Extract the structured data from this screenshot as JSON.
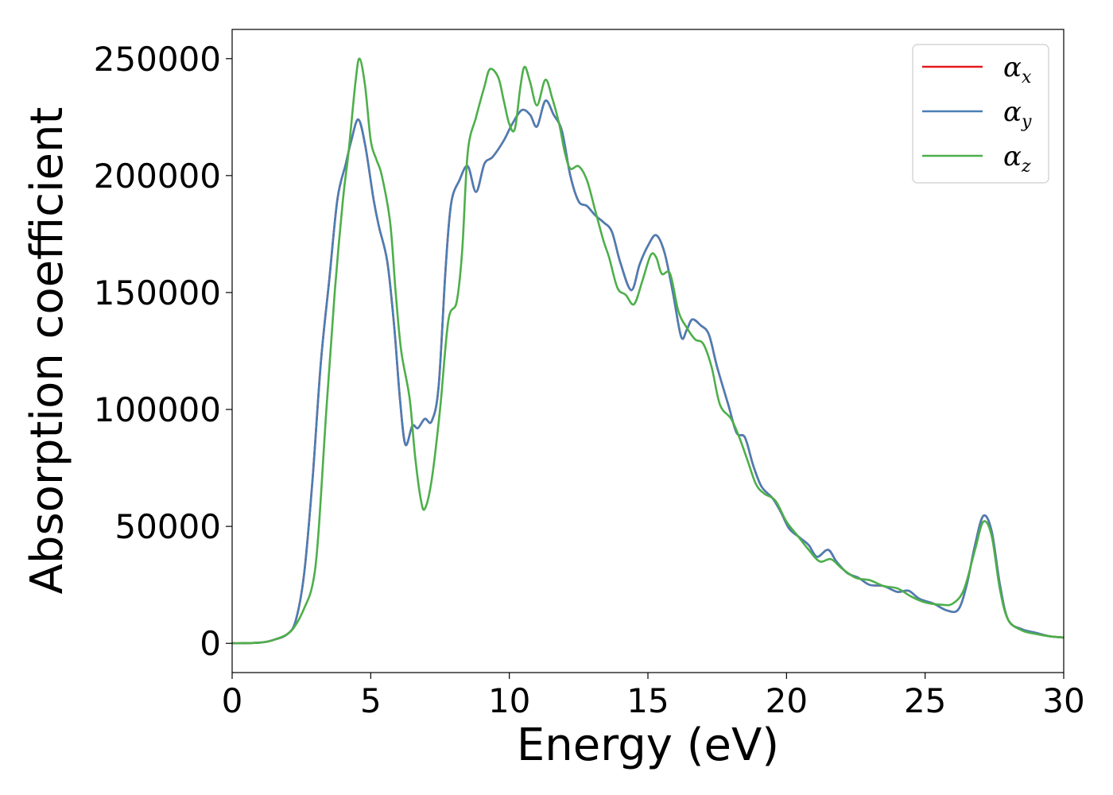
{
  "chart_data": {
    "type": "line",
    "xlabel": "Energy (eV)",
    "ylabel": "Absorption coefficient",
    "xlim": [
      0,
      30
    ],
    "ylim": [
      -12500,
      262500
    ],
    "xticks": [
      "0",
      "5",
      "10",
      "15",
      "20",
      "25",
      "30"
    ],
    "xtick_values": [
      0,
      5,
      10,
      15,
      20,
      25,
      30
    ],
    "yticks": [
      "0",
      "50000",
      "100000",
      "150000",
      "200000",
      "250000"
    ],
    "ytick_values": [
      0,
      50000,
      100000,
      150000,
      200000,
      250000
    ],
    "grid": false,
    "legend_position": "top-right",
    "series": [
      {
        "name": "α_x",
        "label_main": "α",
        "label_sub": "x",
        "color": "#e41a1c",
        "points": [
          [
            0,
            0
          ],
          [
            1.0,
            300
          ],
          [
            1.5,
            1500
          ],
          [
            2.0,
            4000
          ],
          [
            2.3,
            10000
          ],
          [
            2.6,
            30000
          ],
          [
            2.9,
            70000
          ],
          [
            3.2,
            120000
          ],
          [
            3.5,
            155000
          ],
          [
            3.8,
            190000
          ],
          [
            4.1,
            205000
          ],
          [
            4.3,
            215000
          ],
          [
            4.55,
            224000
          ],
          [
            4.8,
            213000
          ],
          [
            5.1,
            190000
          ],
          [
            5.3,
            178000
          ],
          [
            5.6,
            163000
          ],
          [
            5.85,
            135000
          ],
          [
            6.05,
            105000
          ],
          [
            6.25,
            85000
          ],
          [
            6.5,
            93000
          ],
          [
            6.7,
            92000
          ],
          [
            6.95,
            96000
          ],
          [
            7.2,
            95000
          ],
          [
            7.45,
            110000
          ],
          [
            7.7,
            160000
          ],
          [
            7.9,
            188000
          ],
          [
            8.2,
            198000
          ],
          [
            8.5,
            204000
          ],
          [
            8.8,
            193000
          ],
          [
            9.1,
            205000
          ],
          [
            9.4,
            208000
          ],
          [
            9.8,
            215000
          ],
          [
            10.1,
            222000
          ],
          [
            10.45,
            228000
          ],
          [
            10.75,
            226000
          ],
          [
            11.0,
            221000
          ],
          [
            11.3,
            232000
          ],
          [
            11.6,
            226000
          ],
          [
            11.9,
            219000
          ],
          [
            12.2,
            200000
          ],
          [
            12.5,
            189000
          ],
          [
            12.8,
            187000
          ],
          [
            13.1,
            183000
          ],
          [
            13.4,
            180000
          ],
          [
            13.7,
            176000
          ],
          [
            14.0,
            163000
          ],
          [
            14.4,
            151000
          ],
          [
            14.7,
            162000
          ],
          [
            15.0,
            170000
          ],
          [
            15.3,
            174500
          ],
          [
            15.6,
            167000
          ],
          [
            15.9,
            150000
          ],
          [
            16.2,
            131000
          ],
          [
            16.4,
            134000
          ],
          [
            16.6,
            138500
          ],
          [
            16.9,
            136000
          ],
          [
            17.2,
            132000
          ],
          [
            17.5,
            118000
          ],
          [
            17.9,
            102000
          ],
          [
            18.2,
            90000
          ],
          [
            18.5,
            88000
          ],
          [
            18.8,
            76000
          ],
          [
            19.1,
            67000
          ],
          [
            19.5,
            62000
          ],
          [
            19.8,
            56000
          ],
          [
            20.1,
            49000
          ],
          [
            20.5,
            45000
          ],
          [
            20.8,
            42000
          ],
          [
            21.1,
            37000
          ],
          [
            21.5,
            40000
          ],
          [
            21.8,
            35000
          ],
          [
            22.2,
            30000
          ],
          [
            22.6,
            28000
          ],
          [
            23.0,
            25000
          ],
          [
            23.5,
            24500
          ],
          [
            24.0,
            22000
          ],
          [
            24.4,
            22500
          ],
          [
            24.8,
            19000
          ],
          [
            25.3,
            17000
          ],
          [
            25.8,
            14000
          ],
          [
            26.2,
            14500
          ],
          [
            26.5,
            25000
          ],
          [
            26.8,
            42000
          ],
          [
            27.1,
            54500
          ],
          [
            27.4,
            48000
          ],
          [
            27.7,
            25000
          ],
          [
            28.0,
            10000
          ],
          [
            28.5,
            6000
          ],
          [
            29.0,
            4500
          ],
          [
            29.5,
            3000
          ],
          [
            30.0,
            2500
          ]
        ]
      },
      {
        "name": "α_y",
        "label_main": "α",
        "label_sub": "y",
        "color": "#4a7eb5",
        "points": [
          [
            0,
            0
          ],
          [
            1.0,
            300
          ],
          [
            1.5,
            1500
          ],
          [
            2.0,
            4000
          ],
          [
            2.3,
            10000
          ],
          [
            2.6,
            30000
          ],
          [
            2.9,
            70000
          ],
          [
            3.2,
            120000
          ],
          [
            3.5,
            155000
          ],
          [
            3.8,
            190000
          ],
          [
            4.1,
            205000
          ],
          [
            4.3,
            215000
          ],
          [
            4.55,
            224000
          ],
          [
            4.8,
            213000
          ],
          [
            5.1,
            190000
          ],
          [
            5.3,
            178000
          ],
          [
            5.6,
            163000
          ],
          [
            5.85,
            135000
          ],
          [
            6.05,
            105000
          ],
          [
            6.25,
            85000
          ],
          [
            6.5,
            93000
          ],
          [
            6.7,
            92000
          ],
          [
            6.95,
            96000
          ],
          [
            7.2,
            95000
          ],
          [
            7.45,
            110000
          ],
          [
            7.7,
            160000
          ],
          [
            7.9,
            188000
          ],
          [
            8.2,
            198000
          ],
          [
            8.5,
            204000
          ],
          [
            8.8,
            193000
          ],
          [
            9.1,
            205000
          ],
          [
            9.4,
            208000
          ],
          [
            9.8,
            215000
          ],
          [
            10.1,
            222000
          ],
          [
            10.45,
            228000
          ],
          [
            10.75,
            226000
          ],
          [
            11.0,
            221000
          ],
          [
            11.3,
            232000
          ],
          [
            11.6,
            226000
          ],
          [
            11.9,
            219000
          ],
          [
            12.2,
            200000
          ],
          [
            12.5,
            189000
          ],
          [
            12.8,
            187000
          ],
          [
            13.1,
            183000
          ],
          [
            13.4,
            180000
          ],
          [
            13.7,
            176000
          ],
          [
            14.0,
            163000
          ],
          [
            14.4,
            151000
          ],
          [
            14.7,
            162000
          ],
          [
            15.0,
            170000
          ],
          [
            15.3,
            174500
          ],
          [
            15.6,
            167000
          ],
          [
            15.9,
            150000
          ],
          [
            16.2,
            131000
          ],
          [
            16.4,
            134000
          ],
          [
            16.6,
            138500
          ],
          [
            16.9,
            136000
          ],
          [
            17.2,
            132000
          ],
          [
            17.5,
            118000
          ],
          [
            17.9,
            102000
          ],
          [
            18.2,
            90000
          ],
          [
            18.5,
            88000
          ],
          [
            18.8,
            76000
          ],
          [
            19.1,
            67000
          ],
          [
            19.5,
            62000
          ],
          [
            19.8,
            56000
          ],
          [
            20.1,
            49000
          ],
          [
            20.5,
            45000
          ],
          [
            20.8,
            42000
          ],
          [
            21.1,
            37000
          ],
          [
            21.5,
            40000
          ],
          [
            21.8,
            35000
          ],
          [
            22.2,
            30000
          ],
          [
            22.6,
            28000
          ],
          [
            23.0,
            25000
          ],
          [
            23.5,
            24500
          ],
          [
            24.0,
            22000
          ],
          [
            24.4,
            22500
          ],
          [
            24.8,
            19000
          ],
          [
            25.3,
            17000
          ],
          [
            25.8,
            14000
          ],
          [
            26.2,
            14500
          ],
          [
            26.5,
            25000
          ],
          [
            26.8,
            42000
          ],
          [
            27.1,
            54500
          ],
          [
            27.4,
            48000
          ],
          [
            27.7,
            25000
          ],
          [
            28.0,
            10000
          ],
          [
            28.5,
            6000
          ],
          [
            29.0,
            4500
          ],
          [
            29.5,
            3000
          ],
          [
            30.0,
            2500
          ]
        ]
      },
      {
        "name": "α_z",
        "label_main": "α",
        "label_sub": "z",
        "color": "#4daf4a",
        "points": [
          [
            0,
            0
          ],
          [
            1.0,
            300
          ],
          [
            1.5,
            1500
          ],
          [
            2.0,
            4000
          ],
          [
            2.3,
            8000
          ],
          [
            2.6,
            15000
          ],
          [
            2.9,
            25000
          ],
          [
            3.1,
            45000
          ],
          [
            3.4,
            100000
          ],
          [
            3.7,
            150000
          ],
          [
            4.0,
            190000
          ],
          [
            4.2,
            210000
          ],
          [
            4.45,
            240000
          ],
          [
            4.6,
            250000
          ],
          [
            4.8,
            238000
          ],
          [
            5.0,
            215000
          ],
          [
            5.2,
            207000
          ],
          [
            5.4,
            200000
          ],
          [
            5.7,
            180000
          ],
          [
            5.9,
            150000
          ],
          [
            6.1,
            125000
          ],
          [
            6.4,
            105000
          ],
          [
            6.6,
            80000
          ],
          [
            6.8,
            62000
          ],
          [
            6.95,
            57500
          ],
          [
            7.2,
            70000
          ],
          [
            7.5,
            100000
          ],
          [
            7.8,
            138000
          ],
          [
            8.1,
            146000
          ],
          [
            8.3,
            168000
          ],
          [
            8.5,
            210000
          ],
          [
            8.8,
            225000
          ],
          [
            9.1,
            238000
          ],
          [
            9.3,
            245500
          ],
          [
            9.6,
            242000
          ],
          [
            9.8,
            232000
          ],
          [
            10.0,
            222000
          ],
          [
            10.2,
            220000
          ],
          [
            10.4,
            238000
          ],
          [
            10.55,
            246500
          ],
          [
            10.75,
            240000
          ],
          [
            11.0,
            230000
          ],
          [
            11.3,
            241000
          ],
          [
            11.55,
            233000
          ],
          [
            11.8,
            222000
          ],
          [
            12.0,
            210000
          ],
          [
            12.2,
            203000
          ],
          [
            12.5,
            204000
          ],
          [
            12.8,
            198000
          ],
          [
            13.1,
            185000
          ],
          [
            13.4,
            172000
          ],
          [
            13.6,
            165000
          ],
          [
            13.9,
            152000
          ],
          [
            14.2,
            149000
          ],
          [
            14.5,
            145000
          ],
          [
            14.8,
            155000
          ],
          [
            15.1,
            166000
          ],
          [
            15.3,
            165000
          ],
          [
            15.5,
            158000
          ],
          [
            15.8,
            158000
          ],
          [
            16.1,
            142000
          ],
          [
            16.4,
            135000
          ],
          [
            16.7,
            130000
          ],
          [
            17.0,
            128000
          ],
          [
            17.3,
            118000
          ],
          [
            17.6,
            102000
          ],
          [
            18.0,
            96000
          ],
          [
            18.3,
            88000
          ],
          [
            18.6,
            78000
          ],
          [
            18.9,
            68000
          ],
          [
            19.2,
            64000
          ],
          [
            19.6,
            61000
          ],
          [
            20.0,
            52000
          ],
          [
            20.4,
            46000
          ],
          [
            20.8,
            40000
          ],
          [
            21.2,
            35000
          ],
          [
            21.6,
            36000
          ],
          [
            22.0,
            32000
          ],
          [
            22.5,
            28000
          ],
          [
            23.0,
            27000
          ],
          [
            23.5,
            24500
          ],
          [
            24.0,
            23500
          ],
          [
            24.5,
            20000
          ],
          [
            25.0,
            17500
          ],
          [
            25.6,
            16500
          ],
          [
            26.0,
            17000
          ],
          [
            26.4,
            23000
          ],
          [
            26.8,
            40000
          ],
          [
            27.1,
            52000
          ],
          [
            27.4,
            46000
          ],
          [
            27.7,
            23000
          ],
          [
            28.0,
            10000
          ],
          [
            28.5,
            5500
          ],
          [
            29.0,
            4000
          ],
          [
            29.5,
            3000
          ],
          [
            30.0,
            2500
          ]
        ]
      }
    ]
  }
}
